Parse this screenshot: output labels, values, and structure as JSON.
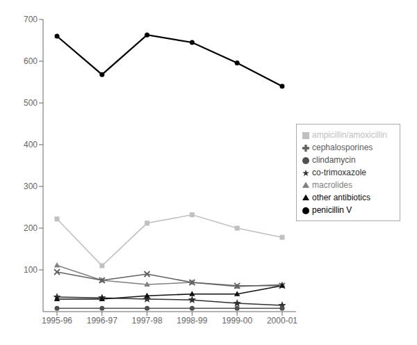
{
  "chart_data": {
    "type": "line",
    "categories": [
      "1995-96",
      "1996-97",
      "1997-98",
      "1998-99",
      "1999-00",
      "2000-01"
    ],
    "series": [
      {
        "name": "penicillin V",
        "color": "#000000",
        "marker": "circle",
        "values": [
          660,
          568,
          663,
          645,
          596,
          540
        ]
      },
      {
        "name": "ampicillin/amoxicillin",
        "color": "#c0c0c0",
        "marker": "square",
        "values": [
          222,
          110,
          212,
          232,
          200,
          178
        ]
      },
      {
        "name": "macrolides",
        "color": "#808080",
        "marker": "triangle",
        "values": [
          111,
          75,
          65,
          70,
          60,
          65
        ]
      },
      {
        "name": "cephalosporines",
        "color": "#606060",
        "marker": "x",
        "values": [
          95,
          75,
          90,
          70,
          62,
          62
        ]
      },
      {
        "name": "co-trimoxazole",
        "color": "#303030",
        "marker": "star",
        "values": [
          35,
          33,
          30,
          28,
          20,
          15
        ]
      },
      {
        "name": "clindamycin",
        "color": "#505050",
        "marker": "circle",
        "values": [
          8,
          8,
          8,
          8,
          8,
          8
        ]
      },
      {
        "name": "other antibiotics",
        "color": "#101010",
        "marker": "triangle",
        "values": [
          30,
          30,
          38,
          42,
          42,
          62
        ]
      }
    ],
    "ylim": [
      0,
      700
    ],
    "yticks": [
      100,
      200,
      300,
      400,
      500,
      600,
      700
    ],
    "grid": false,
    "legend": "right"
  }
}
